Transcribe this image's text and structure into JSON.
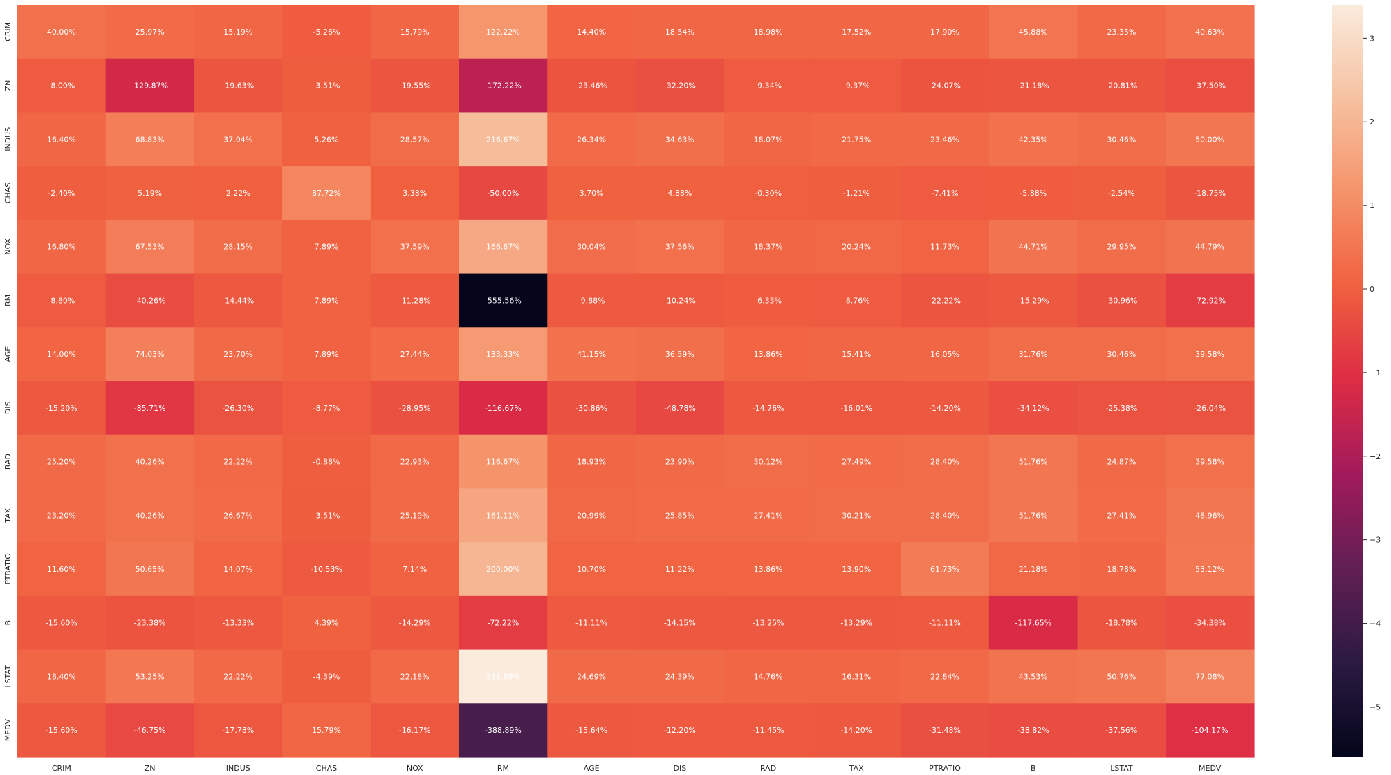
{
  "chart_data": {
    "type": "heatmap",
    "title": "",
    "xlabel": "",
    "ylabel": "",
    "x_categories": [
      "CRIM",
      "ZN",
      "INDUS",
      "CHAS",
      "NOX",
      "RM",
      "AGE",
      "DIS",
      "RAD",
      "TAX",
      "PTRATIO",
      "B",
      "LSTAT",
      "MEDV"
    ],
    "y_categories": [
      "CRIM",
      "ZN",
      "INDUS",
      "CHAS",
      "NOX",
      "RM",
      "AGE",
      "DIS",
      "RAD",
      "TAX",
      "PTRATIO",
      "B",
      "LSTAT",
      "MEDV"
    ],
    "values": [
      [
        40.0,
        25.97,
        15.19,
        -5.26,
        15.79,
        122.22,
        14.4,
        18.54,
        18.98,
        17.52,
        17.9,
        45.88,
        23.35,
        40.63
      ],
      [
        -8.0,
        -129.87,
        -19.63,
        -3.51,
        -19.55,
        -172.22,
        -23.46,
        -32.2,
        -9.34,
        -9.37,
        -24.07,
        -21.18,
        -20.81,
        -37.5
      ],
      [
        16.4,
        68.83,
        37.04,
        5.26,
        28.57,
        216.67,
        26.34,
        34.63,
        18.07,
        21.75,
        23.46,
        42.35,
        30.46,
        50.0
      ],
      [
        -2.4,
        5.19,
        2.22,
        87.72,
        3.38,
        -50.0,
        3.7,
        4.88,
        -0.3,
        -1.21,
        -7.41,
        -5.88,
        -2.54,
        -18.75
      ],
      [
        16.8,
        67.53,
        28.15,
        7.89,
        37.59,
        166.67,
        30.04,
        37.56,
        18.37,
        20.24,
        11.73,
        44.71,
        29.95,
        44.79
      ],
      [
        -8.8,
        -40.26,
        -14.44,
        7.89,
        -11.28,
        -555.56,
        -9.88,
        -10.24,
        -6.33,
        -8.76,
        -22.22,
        -15.29,
        -30.96,
        -72.92
      ],
      [
        14.0,
        74.03,
        23.7,
        7.89,
        27.44,
        133.33,
        41.15,
        36.59,
        13.86,
        15.41,
        16.05,
        31.76,
        30.46,
        39.58
      ],
      [
        -15.2,
        -85.71,
        -26.3,
        -8.77,
        -28.95,
        -116.67,
        -30.86,
        -48.78,
        -14.76,
        -16.01,
        -14.2,
        -34.12,
        -25.38,
        -26.04
      ],
      [
        25.2,
        40.26,
        22.22,
        -0.88,
        22.93,
        116.67,
        18.93,
        23.9,
        30.12,
        27.49,
        28.4,
        51.76,
        24.87,
        39.58
      ],
      [
        23.2,
        40.26,
        26.67,
        -3.51,
        25.19,
        161.11,
        20.99,
        25.85,
        27.41,
        30.21,
        28.4,
        51.76,
        27.41,
        48.96
      ],
      [
        11.6,
        50.65,
        14.07,
        -10.53,
        7.14,
        200.0,
        10.7,
        11.22,
        13.86,
        13.9,
        61.73,
        21.18,
        18.78,
        53.12
      ],
      [
        -15.6,
        -23.38,
        -13.33,
        4.39,
        -14.29,
        -72.22,
        -11.11,
        -14.15,
        -13.25,
        -13.29,
        -11.11,
        -117.65,
        -18.78,
        -34.38
      ],
      [
        18.4,
        53.25,
        22.22,
        -4.39,
        22.18,
        338.89,
        24.69,
        24.39,
        14.76,
        16.31,
        22.84,
        43.53,
        50.76,
        77.08
      ],
      [
        -15.6,
        -46.75,
        -17.78,
        15.79,
        -16.17,
        -388.89,
        -15.64,
        -12.2,
        -11.45,
        -14.2,
        -31.48,
        -38.82,
        -37.56,
        -104.17
      ]
    ],
    "value_format": "percent",
    "colormap": "rocket",
    "colorbar": {
      "range": [
        -5.6,
        3.4
      ],
      "ticks": [
        3,
        2,
        1,
        0,
        -1,
        -2,
        -3,
        -4,
        -5
      ],
      "tick_labels": [
        "3",
        "2",
        "1",
        "0",
        "−1",
        "−2",
        "−3",
        "−4",
        "−5"
      ]
    },
    "grid": false
  }
}
